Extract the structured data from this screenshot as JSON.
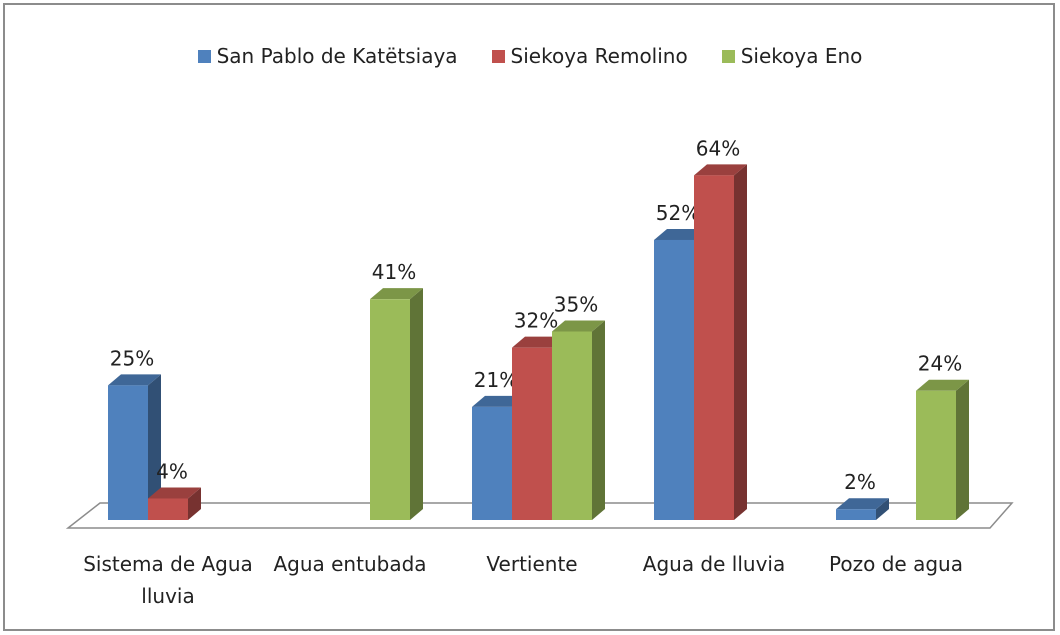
{
  "chart_data": {
    "type": "bar3d",
    "categories": [
      "Sistema de Agua lluvia",
      "Agua entubada",
      "Vertiente",
      "Agua de lluvia",
      "Pozo de agua"
    ],
    "series": [
      {
        "name": "San Pablo de Katëtsiaya",
        "color": "#4f81bd",
        "values": [
          25,
          null,
          21,
          52,
          2
        ],
        "value_labels": [
          "25%",
          null,
          "21%",
          "52%",
          "2%"
        ]
      },
      {
        "name": "Siekoya Remolino",
        "color": "#c0504d",
        "values": [
          4,
          null,
          32,
          64,
          null
        ],
        "value_labels": [
          "4%",
          null,
          "32%",
          "64%",
          null
        ]
      },
      {
        "name": "Siekoya Eno",
        "color": "#9bbb59",
        "values": [
          null,
          41,
          35,
          null,
          24
        ],
        "value_labels": [
          null,
          "41%",
          "35%",
          null,
          "24%"
        ]
      }
    ],
    "ylim": [
      0,
      70
    ],
    "legend": "top"
  }
}
